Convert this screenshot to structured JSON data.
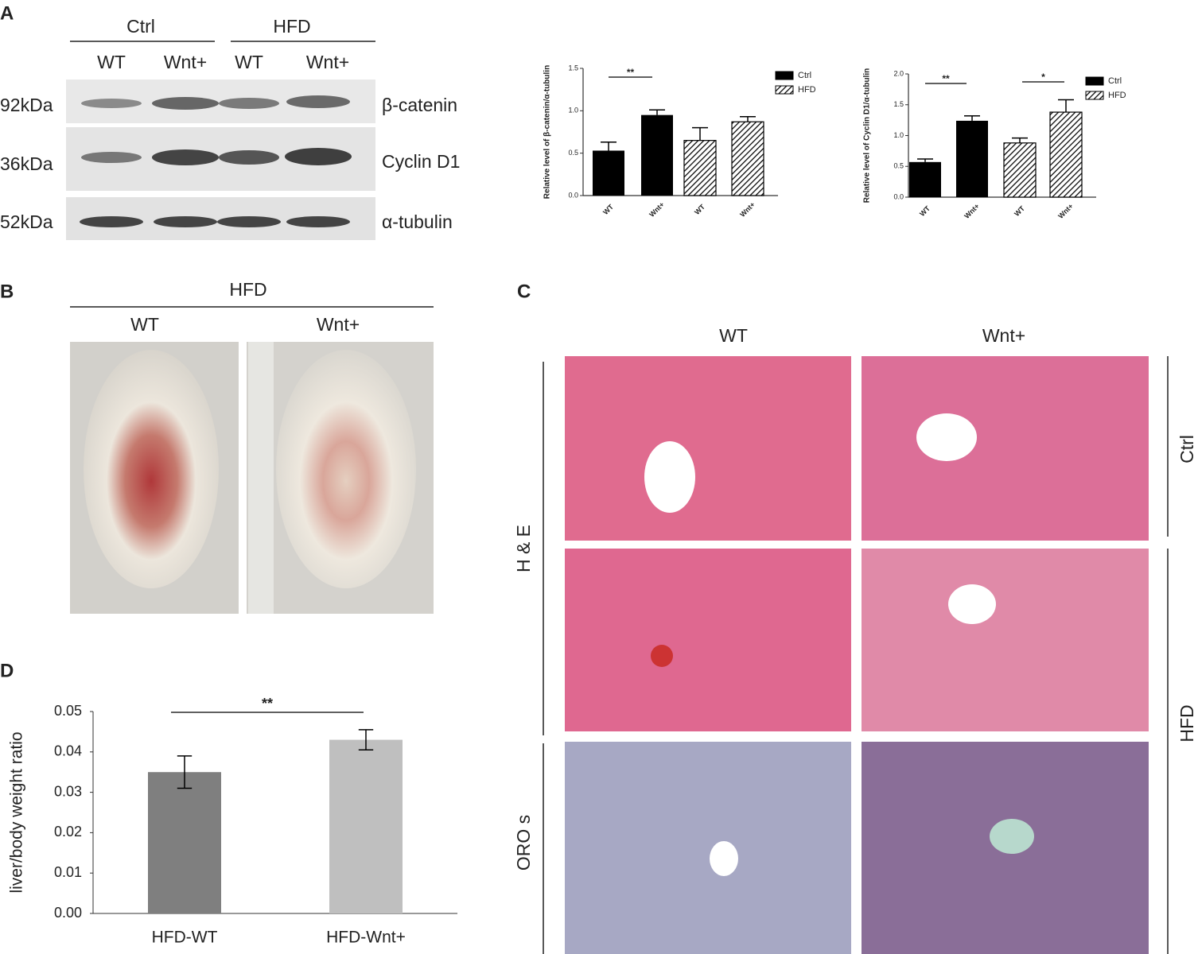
{
  "panels": {
    "a": "A",
    "b": "B",
    "c": "C",
    "d": "D"
  },
  "blot": {
    "groups": [
      "Ctrl",
      "HFD"
    ],
    "lanes": [
      "WT",
      "Wnt+",
      "WT",
      "Wnt+"
    ],
    "rows": [
      {
        "size": "92kDa",
        "protein": "β-catenin"
      },
      {
        "size": "36kDa",
        "protein": "Cyclin D1"
      },
      {
        "size": "52kDa",
        "protein": "α-tubulin"
      }
    ]
  },
  "photos": {
    "group": "HFD",
    "columns": [
      "WT",
      "Wnt+"
    ]
  },
  "histology": {
    "columns": [
      "WT",
      "Wnt+"
    ],
    "rows": [
      "H & E",
      "ORO s"
    ],
    "sides": [
      "Ctrl",
      "HFD"
    ]
  },
  "chart_data": [
    {
      "type": "bar",
      "y_label": "Relative level of β-catenin/α-tubulin",
      "categories": [
        "WT",
        "Wnt+",
        "WT",
        "Wnt+"
      ],
      "series": [
        {
          "name": "Ctrl",
          "color": "#000000",
          "values": [
            0.53,
            0.95,
            null,
            null
          ],
          "errors": [
            0.1,
            0.06,
            null,
            null
          ]
        },
        {
          "name": "HFD",
          "color": "hatch",
          "values": [
            null,
            null,
            0.65,
            0.87
          ],
          "errors": [
            null,
            null,
            0.15,
            0.06
          ]
        }
      ],
      "ylim": [
        0,
        1.5
      ],
      "yticks": [
        {
          "value": 0,
          "label": "0.0"
        },
        {
          "value": 0.5,
          "label": "0.5"
        },
        {
          "value": 1,
          "label": "1.0"
        },
        {
          "value": 1.5,
          "label": "1.5"
        }
      ],
      "annotations": [
        "**"
      ]
    },
    {
      "type": "bar",
      "y_label": "Relative level of Cyclin D1/α-tubulin",
      "categories": [
        "WT",
        "Wnt+",
        "WT",
        "Wnt+"
      ],
      "series": [
        {
          "name": "Ctrl",
          "color": "#000000",
          "values": [
            0.57,
            1.24,
            null,
            null
          ],
          "errors": [
            0.05,
            0.08,
            null,
            null
          ]
        },
        {
          "name": "HFD",
          "color": "hatch",
          "values": [
            null,
            null,
            0.88,
            1.38
          ],
          "errors": [
            null,
            null,
            0.08,
            0.2
          ]
        }
      ],
      "ylim": [
        0,
        2
      ],
      "yticks": [
        {
          "value": 0,
          "label": "0.0"
        },
        {
          "value": 0.5,
          "label": "0.5"
        },
        {
          "value": 1,
          "label": "1.0"
        },
        {
          "value": 1.5,
          "label": "1.5"
        },
        {
          "value": 2,
          "label": "2.0"
        }
      ],
      "annotations": [
        "**",
        "*"
      ]
    },
    {
      "type": "bar",
      "y_label": "liver/body weight ratio",
      "categories": [
        "HFD-WT",
        "HFD-Wnt+"
      ],
      "values": [
        0.035,
        0.043
      ],
      "errors": [
        0.004,
        0.0025
      ],
      "colors": [
        "#7f7f7f",
        "#bfbfbf"
      ],
      "ylim": [
        0,
        0.05
      ],
      "yticks": [
        {
          "value": 0,
          "label": "0.00"
        },
        {
          "value": 0.01,
          "label": "0.01"
        },
        {
          "value": 0.02,
          "label": "0.02"
        },
        {
          "value": 0.03,
          "label": "0.03"
        },
        {
          "value": 0.04,
          "label": "0.04"
        },
        {
          "value": 0.05,
          "label": "0.05"
        }
      ],
      "annotations": [
        "**"
      ]
    }
  ]
}
